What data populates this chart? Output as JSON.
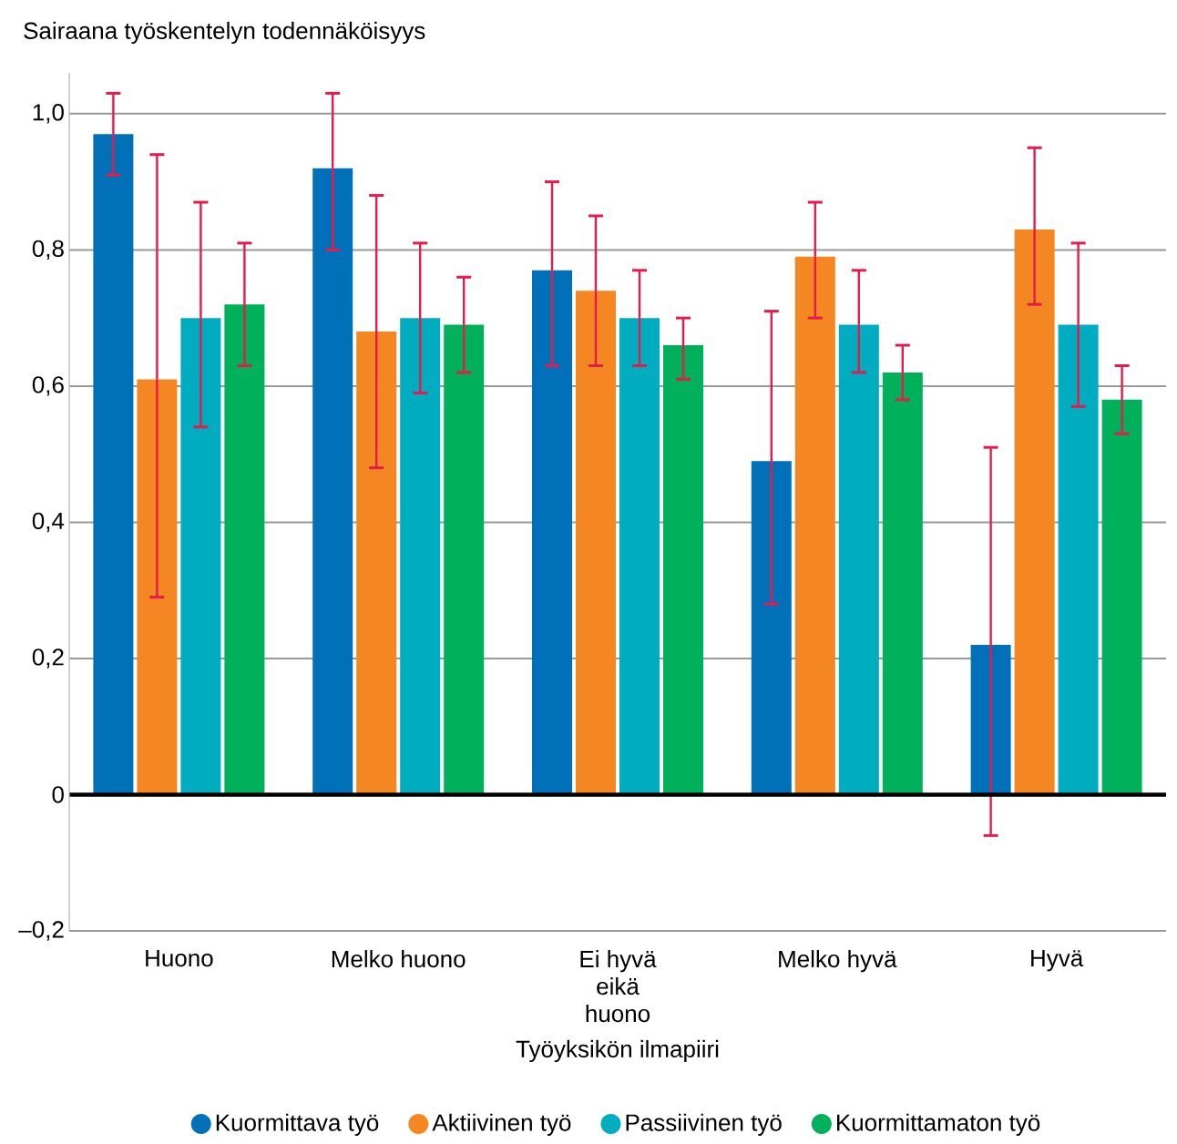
{
  "chart_data": {
    "type": "bar",
    "ylabel": "Sairaana työskentelyn todennäköisyys",
    "xlabel": "Työyksikön ilmapiiri",
    "categories": [
      "Huono",
      "Melko huono",
      "Ei hyvä eikä huono",
      "Melko hyvä",
      "Hyvä"
    ],
    "series": [
      {
        "name": "Kuormittava työ",
        "color": "#0070b8",
        "values": [
          0.97,
          0.92,
          0.77,
          0.49,
          0.22
        ],
        "errors": [
          [
            0.91,
            1.03
          ],
          [
            0.8,
            1.03
          ],
          [
            0.63,
            0.9
          ],
          [
            0.28,
            0.71
          ],
          [
            -0.06,
            0.51
          ]
        ]
      },
      {
        "name": "Aktiivinen työ",
        "color": "#f58722",
        "values": [
          0.61,
          0.68,
          0.74,
          0.79,
          0.83
        ],
        "errors": [
          [
            0.29,
            0.94
          ],
          [
            0.48,
            0.88
          ],
          [
            0.63,
            0.85
          ],
          [
            0.7,
            0.87
          ],
          [
            0.72,
            0.95
          ]
        ]
      },
      {
        "name": "Passiivinen työ",
        "color": "#00acc0",
        "values": [
          0.7,
          0.7,
          0.7,
          0.69,
          0.69
        ],
        "errors": [
          [
            0.54,
            0.87
          ],
          [
            0.59,
            0.81
          ],
          [
            0.63,
            0.77
          ],
          [
            0.62,
            0.77
          ],
          [
            0.57,
            0.81
          ]
        ]
      },
      {
        "name": "Kuormittamaton työ",
        "color": "#00b05a",
        "values": [
          0.72,
          0.69,
          0.66,
          0.62,
          0.58
        ],
        "errors": [
          [
            0.63,
            0.81
          ],
          [
            0.62,
            0.76
          ],
          [
            0.61,
            0.7
          ],
          [
            0.58,
            0.66
          ],
          [
            0.53,
            0.63
          ]
        ]
      }
    ],
    "ylim": [
      -0.2,
      1.06
    ],
    "yticks": [
      {
        "value": -0.2,
        "label": "–0,2"
      },
      0,
      {
        "value": 0.2,
        "label": "0,2"
      },
      {
        "value": 0.4,
        "label": "0,4"
      },
      {
        "value": 0.6,
        "label": "0,6"
      },
      {
        "value": 0.8,
        "label": "0,8"
      },
      {
        "value": 1.0,
        "label": "1,0"
      }
    ],
    "grid": "y",
    "legend": "bottom"
  }
}
